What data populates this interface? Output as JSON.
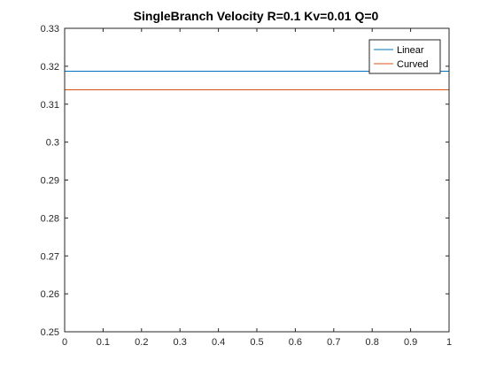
{
  "chart_data": {
    "type": "line",
    "title": "SingleBranch Velocity R=0.1 Kv=0.01 Q=0",
    "xlabel": "",
    "ylabel": "",
    "xlim": [
      0,
      1
    ],
    "ylim": [
      0.25,
      0.33
    ],
    "xticks": [
      "0",
      "0.1",
      "0.2",
      "0.3",
      "0.4",
      "0.5",
      "0.6",
      "0.7",
      "0.8",
      "0.9",
      "1"
    ],
    "yticks": [
      "0.25",
      "0.26",
      "0.27",
      "0.28",
      "0.29",
      "0.3",
      "0.31",
      "0.32",
      "0.33"
    ],
    "grid": false,
    "legend_position": "top-right",
    "series": [
      {
        "name": "Linear",
        "color": "#0072BD",
        "x": [
          0,
          1
        ],
        "y": [
          0.3187,
          0.3187
        ]
      },
      {
        "name": "Curved",
        "color": "#D95319",
        "x": [
          0,
          1
        ],
        "y": [
          0.3138,
          0.3138
        ]
      }
    ]
  }
}
